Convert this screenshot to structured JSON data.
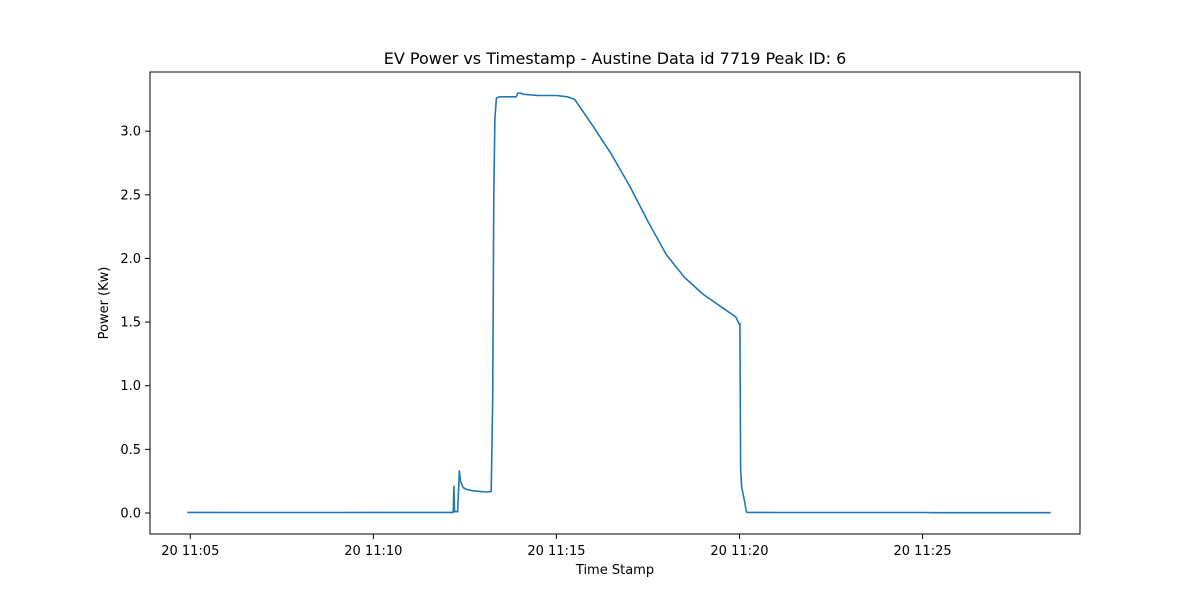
{
  "chart_data": {
    "type": "line",
    "title": "EV Power vs Timestamp - Austine Data id 7719 Peak ID: 6",
    "xlabel": "Time Stamp",
    "ylabel": "Power (Kw)",
    "x_unit": "minutes after 11:00 on day 20",
    "xlim": [
      3.9,
      29.3
    ],
    "ylim": [
      -0.165,
      3.465
    ],
    "grid": false,
    "legend": "none",
    "line_color": "#1f77b4",
    "xticks": [
      {
        "value": 5,
        "label": "20 11:05"
      },
      {
        "value": 10,
        "label": "20 11:10"
      },
      {
        "value": 15,
        "label": "20 11:15"
      },
      {
        "value": 20,
        "label": "20 11:20"
      },
      {
        "value": 25,
        "label": "20 11:25"
      }
    ],
    "yticks": [
      {
        "value": 0.0,
        "label": "0.0"
      },
      {
        "value": 0.5,
        "label": "0.5"
      },
      {
        "value": 1.0,
        "label": "1.0"
      },
      {
        "value": 1.5,
        "label": "1.5"
      },
      {
        "value": 2.0,
        "label": "2.0"
      },
      {
        "value": 2.5,
        "label": "2.5"
      },
      {
        "value": 3.0,
        "label": "3.0"
      }
    ],
    "series": [
      {
        "x": [
          4.92,
          7.0,
          9.0,
          10.5,
          11.5,
          12.1,
          12.18,
          12.2,
          12.22,
          12.26,
          12.3,
          12.35,
          12.38,
          12.45,
          12.55,
          12.7,
          12.9,
          13.1,
          13.22,
          13.26,
          13.29,
          13.32,
          13.36,
          13.44,
          13.9,
          13.95,
          14.0,
          14.1,
          14.5,
          15.0,
          15.3,
          15.5,
          16.0,
          16.5,
          17.0,
          17.5,
          18.0,
          18.5,
          19.0,
          19.5,
          19.9,
          20.0,
          20.01,
          20.02,
          20.03,
          20.06,
          20.1,
          20.14,
          20.18,
          20.2,
          21.0,
          22.0,
          23.0,
          24.0,
          25.0,
          25.4,
          26.0,
          27.0,
          28.5
        ],
        "y": [
          0.005,
          0.004,
          0.004,
          0.005,
          0.005,
          0.005,
          0.005,
          0.21,
          0.01,
          0.01,
          0.01,
          0.33,
          0.25,
          0.2,
          0.185,
          0.175,
          0.17,
          0.165,
          0.17,
          0.9,
          2.5,
          3.1,
          3.26,
          3.27,
          3.27,
          3.3,
          3.3,
          3.29,
          3.28,
          3.28,
          3.27,
          3.25,
          3.04,
          2.82,
          2.57,
          2.29,
          2.03,
          1.85,
          1.72,
          1.62,
          1.54,
          1.48,
          1.49,
          1.0,
          0.35,
          0.2,
          0.15,
          0.09,
          0.02,
          0.005,
          0.004,
          0.004,
          0.004,
          0.004,
          0.004,
          0.002,
          0.002,
          0.002,
          0.002
        ]
      }
    ]
  }
}
